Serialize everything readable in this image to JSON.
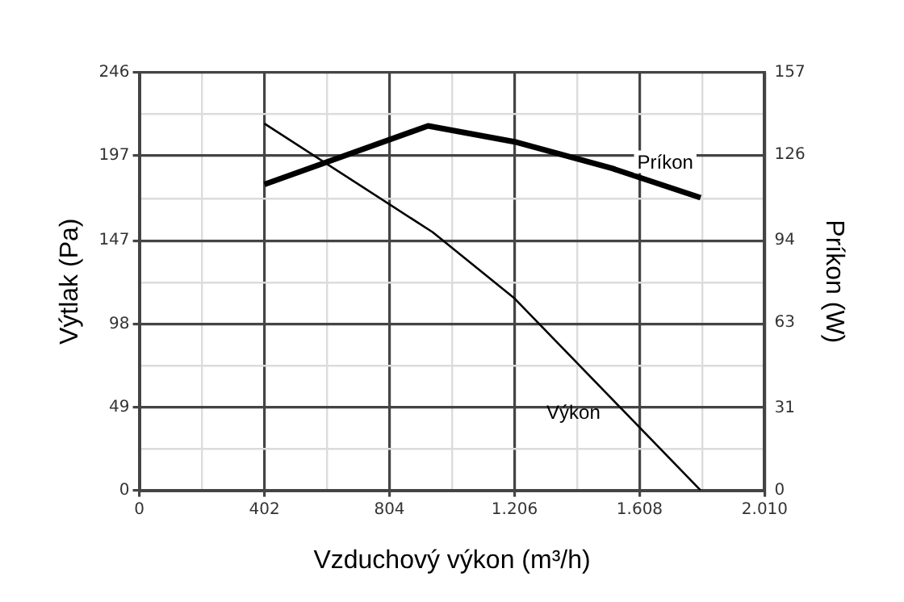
{
  "chart_data": {
    "type": "line",
    "xlabel": "Vzduchový výkon (m³/h)",
    "ylabel": "Výtlak (Pa)",
    "y2label": "Príkon (W)",
    "xlim": [
      0,
      2010
    ],
    "xticks": [
      0,
      {
        "value": 201,
        "label": null
      },
      402,
      {
        "value": 603,
        "label": null
      },
      804,
      {
        "value": 1005,
        "label": null
      },
      {
        "value": 1206,
        "label": "1.206"
      },
      {
        "value": 1407,
        "label": null
      },
      {
        "value": 1608,
        "label": "1.608"
      },
      {
        "value": 1809,
        "label": null
      },
      {
        "value": 2010,
        "label": "2.010"
      }
    ],
    "ylim": [
      0,
      246
    ],
    "yticks": [
      0,
      {
        "value": 24.5,
        "label": null
      },
      49,
      {
        "value": 73.5,
        "label": null
      },
      98,
      {
        "value": 122.5,
        "label": null
      },
      147,
      {
        "value": 172,
        "label": null
      },
      197,
      {
        "value": 221.5,
        "label": null
      },
      246
    ],
    "y2lim": [
      0,
      157
    ],
    "y2ticks": [
      0,
      31,
      63,
      94,
      126,
      157
    ],
    "grid": true,
    "legend": false,
    "marker": "none",
    "line_style": "solid",
    "series": [
      {
        "name": "Výkon",
        "color": "#000000",
        "x": [
          402,
          943,
          1206,
          1804
        ],
        "values": [
          216,
          152,
          113,
          0
        ]
      },
      {
        "name": "Príkon",
        "color": "#000000",
        "axis": "y2",
        "x": [
          402,
          928,
          1206,
          1520,
          1804
        ],
        "values": [
          115,
          137,
          131,
          121,
          110
        ]
      }
    ]
  }
}
